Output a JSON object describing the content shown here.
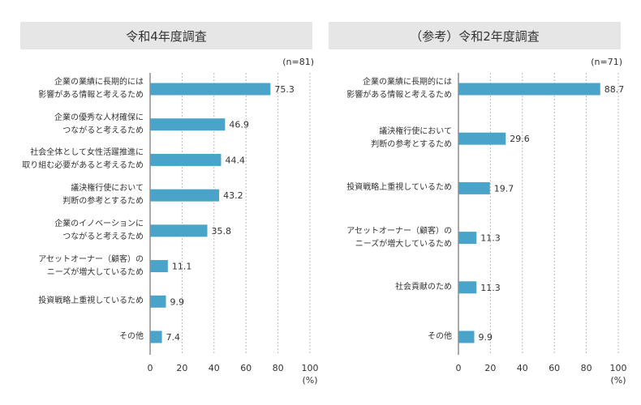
{
  "chart_data": [
    {
      "type": "bar",
      "orientation": "horizontal",
      "title": "令和4年度調査",
      "note": "(n=81)",
      "x_label": "(%)",
      "categories": [
        "企業の業績に長期的には\n影響がある情報と考えるため",
        "企業の優秀な人材確保に\nつながると考えるため",
        "社会全体として女性活躍推進に\n取り組む必要があると考えるため",
        "議決権行使において\n判断の参考とするため",
        "企業のイノベーションに\nつながると考えるため",
        "アセットオーナー（顧客）の\nニーズが増大しているため",
        "投資戦略上重視しているため",
        "その他"
      ],
      "values": [
        75.3,
        46.9,
        44.4,
        43.2,
        35.8,
        11.1,
        9.9,
        7.4
      ],
      "color": "#4aa3c9",
      "xlim": [
        0,
        100
      ],
      "xticks": [
        0,
        20,
        40,
        60,
        80,
        100
      ],
      "grid": true
    },
    {
      "type": "bar",
      "orientation": "horizontal",
      "title": "（参考）令和2年度調査",
      "note": "(n=71)",
      "x_label": "(%)",
      "categories": [
        "企業の業績に長期的には\n影響がある情報と考えるため",
        "議決権行使において\n判断の参考とするため",
        "投資戦略上重視しているため",
        "アセットオーナー（顧客）の\nニーズが増大しているため",
        "社会貢献のため",
        "その他"
      ],
      "values": [
        88.7,
        29.6,
        19.7,
        11.3,
        11.3,
        9.9
      ],
      "color": "#4aa3c9",
      "xlim": [
        0,
        100
      ],
      "xticks": [
        0,
        20,
        40,
        60,
        80,
        100
      ],
      "grid": true
    }
  ]
}
